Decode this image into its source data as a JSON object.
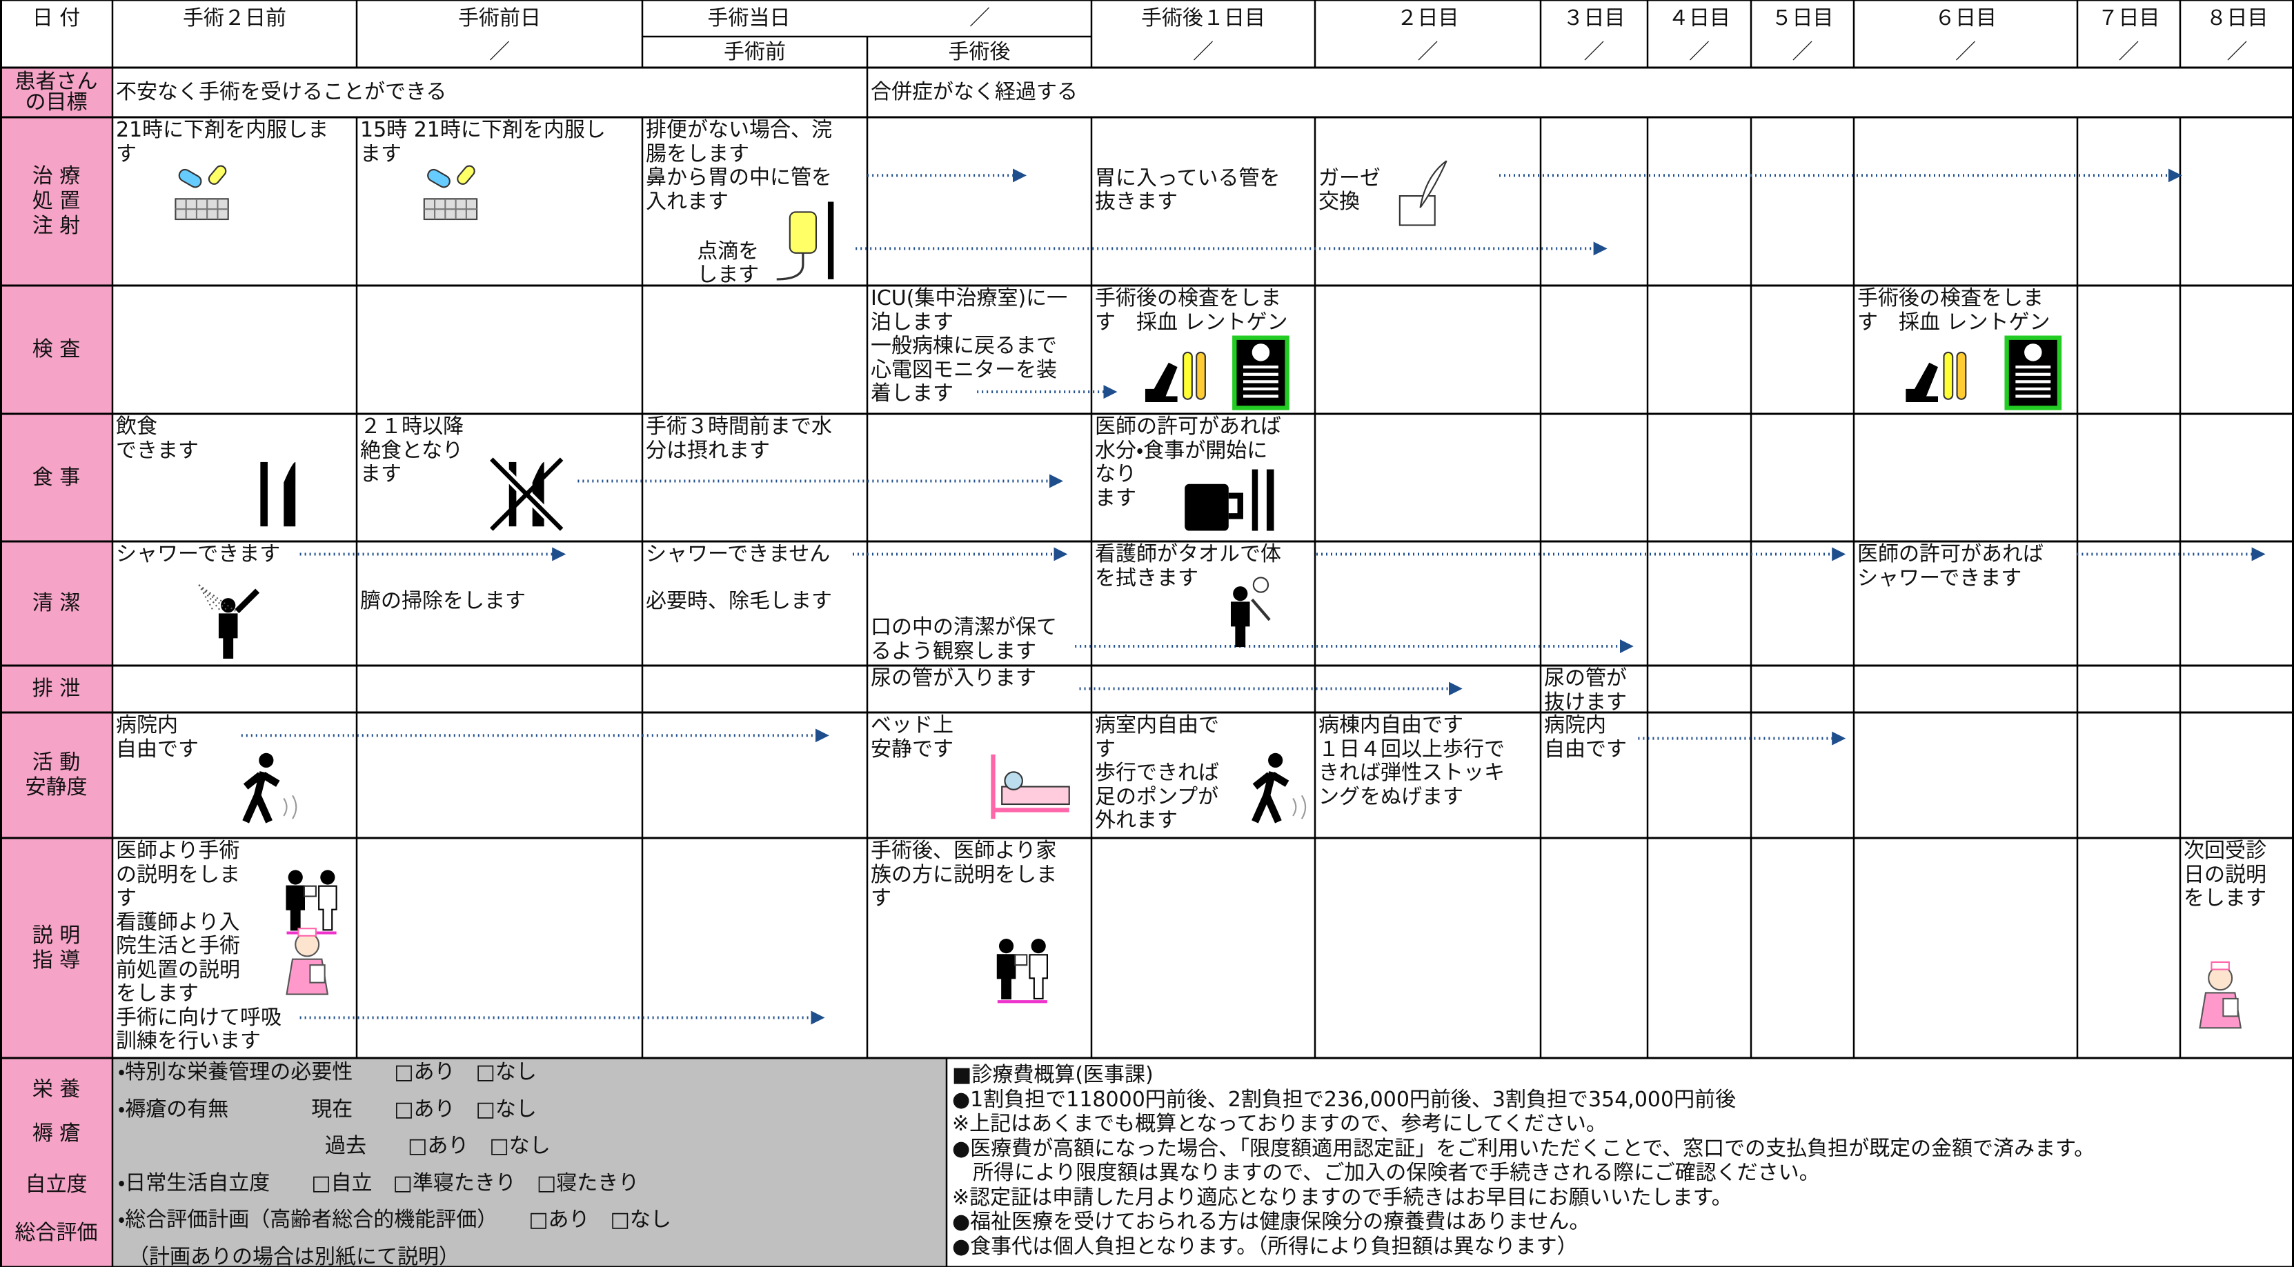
{
  "header": {
    "date_label": "日 付",
    "slash": "／",
    "columns": [
      "手術２日前",
      "手術前日",
      "手術当日",
      "手術後１日目",
      "２日目",
      "３日目",
      "４日目",
      "５日目",
      "６日目",
      "７日目",
      "８日目"
    ],
    "surgery_day_parts": [
      "手術前",
      "手術後"
    ]
  },
  "rows": [
    {
      "label": "患者さん\nの目標",
      "cells": [
        {
          "col": 0,
          "text": "不安なく手術を受けることができる"
        },
        {
          "col": 3,
          "text": "合併症がなく経過する"
        }
      ]
    },
    {
      "label": "治 療\n処 置\n注 射",
      "cells": [
        {
          "col": 0,
          "text": "21時に下剤を内服しま\nす"
        },
        {
          "col": 1,
          "text": "15時 21時に下剤を内服し\nます"
        },
        {
          "col": 2,
          "text": "排便がない場合、浣\n腸をします\n鼻から胃の中に管を\n入れます"
        },
        {
          "col": 2,
          "text": "点滴を\nします"
        },
        {
          "col": 4,
          "text": "胃に入っている管を\n抜きます"
        },
        {
          "col": 5,
          "text": "ガーゼ\n交換"
        }
      ]
    },
    {
      "label": "検 査",
      "cells": [
        {
          "col": 3,
          "text": "ICU(集中治療室)に一\n泊します\n一般病棟に戻るまで\n心電図モニターを装\n着します"
        },
        {
          "col": 4,
          "text": "手術後の検査をしま\nす　採血 レントゲン"
        },
        {
          "col": 9,
          "text": "手術後の検査をしま\nす　採血 レントゲン"
        }
      ]
    },
    {
      "label": "食 事",
      "cells": [
        {
          "col": 0,
          "text": "飲食\nできます"
        },
        {
          "col": 1,
          "text": "２１時以降\n絶食となり\nます"
        },
        {
          "col": 2,
          "text": "手術３時間前まで水\n分は摂れます"
        },
        {
          "col": 4,
          "text": "医師の許可があれば\n水分・食事が開始に\nなり\nます"
        }
      ]
    },
    {
      "label": "清 潔",
      "cells": [
        {
          "col": 0,
          "text": "シャワーできます"
        },
        {
          "col": 1,
          "text": "臍の掃除をします"
        },
        {
          "col": 2,
          "text": "シャワーできません"
        },
        {
          "col": 2,
          "text": "必要時、除毛します"
        },
        {
          "col": 3,
          "text": "口の中の清潔が保て\nるよう観察します"
        },
        {
          "col": 4,
          "text": "看護師がタオルで体\nを拭きます"
        },
        {
          "col": 9,
          "text": "医師の許可があれば\nシャワーできます"
        }
      ]
    },
    {
      "label": "排 泄",
      "cells": [
        {
          "col": 3,
          "text": "尿の管が入ります"
        },
        {
          "col": 6,
          "text": "尿の管が\n抜けます"
        }
      ]
    },
    {
      "label": "活 動\n安静度",
      "cells": [
        {
          "col": 0,
          "text": "病院内\n自由です"
        },
        {
          "col": 3,
          "text": "ベッド上\n安静です"
        },
        {
          "col": 4,
          "text": "病室内自由で\nす\n歩行できれば\n足のポンプが\n外れます"
        },
        {
          "col": 5,
          "text": "病棟内自由です\n１日４回以上歩行で\nきれば弾性ストッキ\nングをぬげます"
        },
        {
          "col": 6,
          "text": "病院内\n自由です"
        }
      ]
    },
    {
      "label": "説 明\n指 導",
      "cells": [
        {
          "col": 0,
          "text": "医師より手術\nの説明をしま\nす\n看護師より入\n院生活と手術\n前処置の説明\nをします\n手術に向けて呼吸\n訓練を行います"
        },
        {
          "col": 3,
          "text": "手術後、医師より家\n族の方に説明をしま\nす"
        },
        {
          "col": 11,
          "text": "次回受診\n日の説明\nをします"
        }
      ]
    }
  ],
  "bottom": {
    "labels": [
      "栄 養",
      "褥 瘡",
      "自立度",
      "総合評価"
    ],
    "assessment": [
      "・特別な栄養管理の必要性　　□あり　□なし",
      "・褥瘡の有無　　　　現在　　□あり　□なし",
      "　　　　　　　　　　過去　　□あり　□なし",
      "・日常生活自立度　　□自立　□準寝たきり　□寝たきり",
      "・総合評価計画（高齢者総合的機能評価）　　□あり　□なし",
      "　（計画ありの場合は別紙にて説明）"
    ],
    "costs": [
      "■診療費概算(医事課)",
      "●1割負担で118000円前後、2割負担で236,000円前後、3割負担で354,000円前後",
      "※上記はあくまでも概算となっておりますので、参考にしてください。",
      "●医療費が高額になった場合、「限度額適用認定証」をご利用いただくことで、窓口での支払負担が既定の金額で済みます。",
      "　所得により限度額は異なりますので、ご加入の保険者で手続きされる際にご確認ください。",
      "※認定証は申請した月より適応となりますので手続きはお早目にお願いいたします。",
      "●福祉医療を受けておられる方は健康保険分の療養費はありません。",
      "●食事代は個人負担となります。（所得により負担額は異なります）"
    ]
  }
}
